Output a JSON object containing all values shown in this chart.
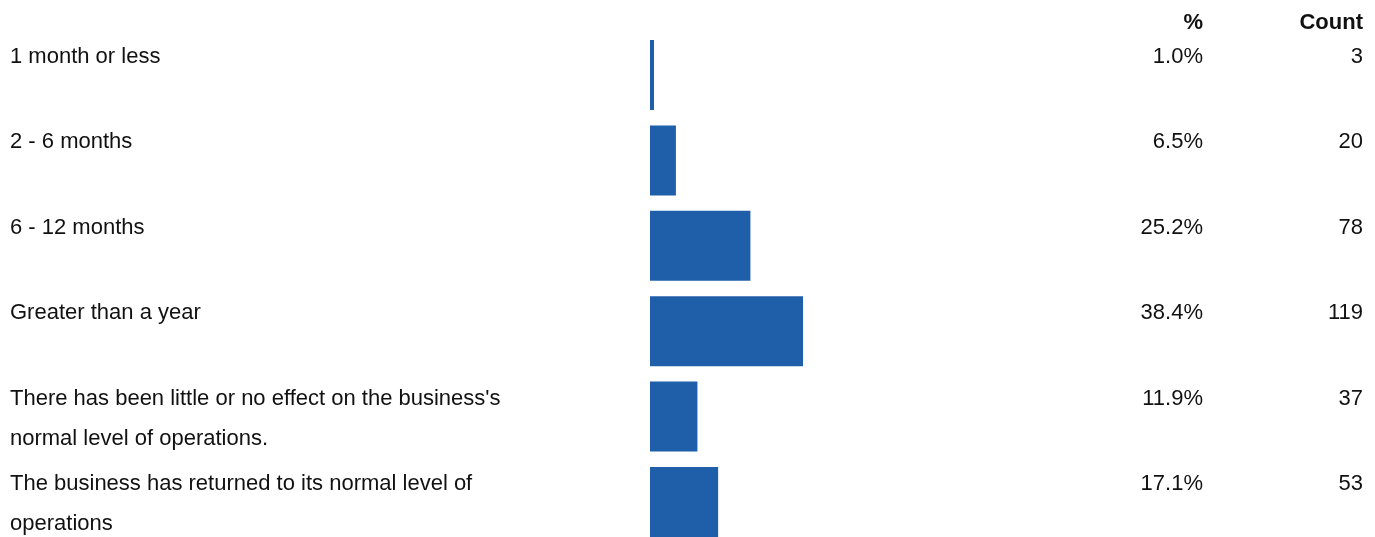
{
  "chart_data": {
    "type": "bar",
    "orientation": "horizontal",
    "categories": [
      "1 month or less",
      "2 - 6 months",
      "6 - 12 months",
      "Greater than a year",
      "There has been little or no effect on the business's normal level of operations.",
      "The business has returned to its normal level of operations"
    ],
    "values": [
      1.0,
      6.5,
      25.2,
      38.4,
      11.9,
      17.1
    ],
    "color": "#1f5fa9",
    "value_labels": [
      "1.0%",
      "6.5%",
      "25.2%",
      "38.4%",
      "11.9%",
      "17.1%"
    ],
    "annotations": [
      "%",
      "Count",
      "3",
      "20",
      "78",
      "119",
      "37",
      "53"
    ],
    "grid": false
  }
}
